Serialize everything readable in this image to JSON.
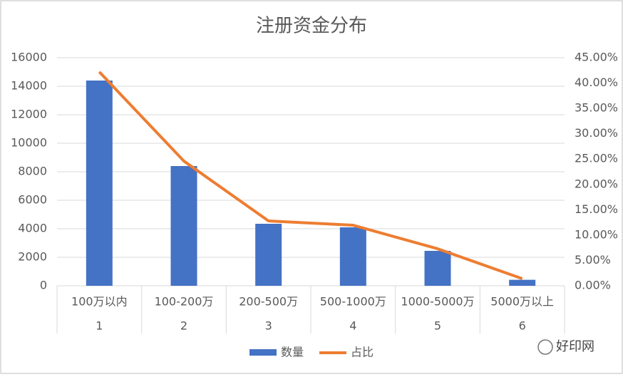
{
  "chart_data": {
    "type": "bar",
    "title": "注册资金分布",
    "categories": [
      "100万以内",
      "100-200万",
      "200-500万",
      "500-1000万",
      "1000-5000万",
      "5000万以上"
    ],
    "category_numbers": [
      "1",
      "2",
      "3",
      "4",
      "5",
      "6"
    ],
    "series": [
      {
        "name": "数量",
        "type": "bar",
        "color": "#4472c4",
        "values": [
          14400,
          8400,
          4350,
          4100,
          2450,
          420
        ]
      },
      {
        "name": "占比",
        "type": "line",
        "axis": "y2",
        "color": "#ed7d31",
        "values": [
          42.2,
          24.6,
          12.8,
          11.95,
          7.3,
          1.4
        ]
      }
    ],
    "ylim": [
      0,
      16000
    ],
    "yticks": [
      0,
      2000,
      4000,
      6000,
      8000,
      10000,
      12000,
      14000,
      16000
    ],
    "y2lim": [
      0,
      45
    ],
    "y2ticks": [
      {
        "value": 0,
        "label": "0.00%"
      },
      {
        "value": 5,
        "label": "5.00%"
      },
      {
        "value": 10,
        "label": "10.00%"
      },
      {
        "value": 15,
        "label": "15.00%"
      },
      {
        "value": 20,
        "label": "20.00%"
      },
      {
        "value": 25,
        "label": "25.00%"
      },
      {
        "value": 30,
        "label": "30.00%"
      },
      {
        "value": 35,
        "label": "35.00%"
      },
      {
        "value": 40,
        "label": "40.00%"
      },
      {
        "value": 45,
        "label": "45.00%"
      }
    ],
    "grid": true,
    "legend": "bottom",
    "watermark": "好印网"
  }
}
